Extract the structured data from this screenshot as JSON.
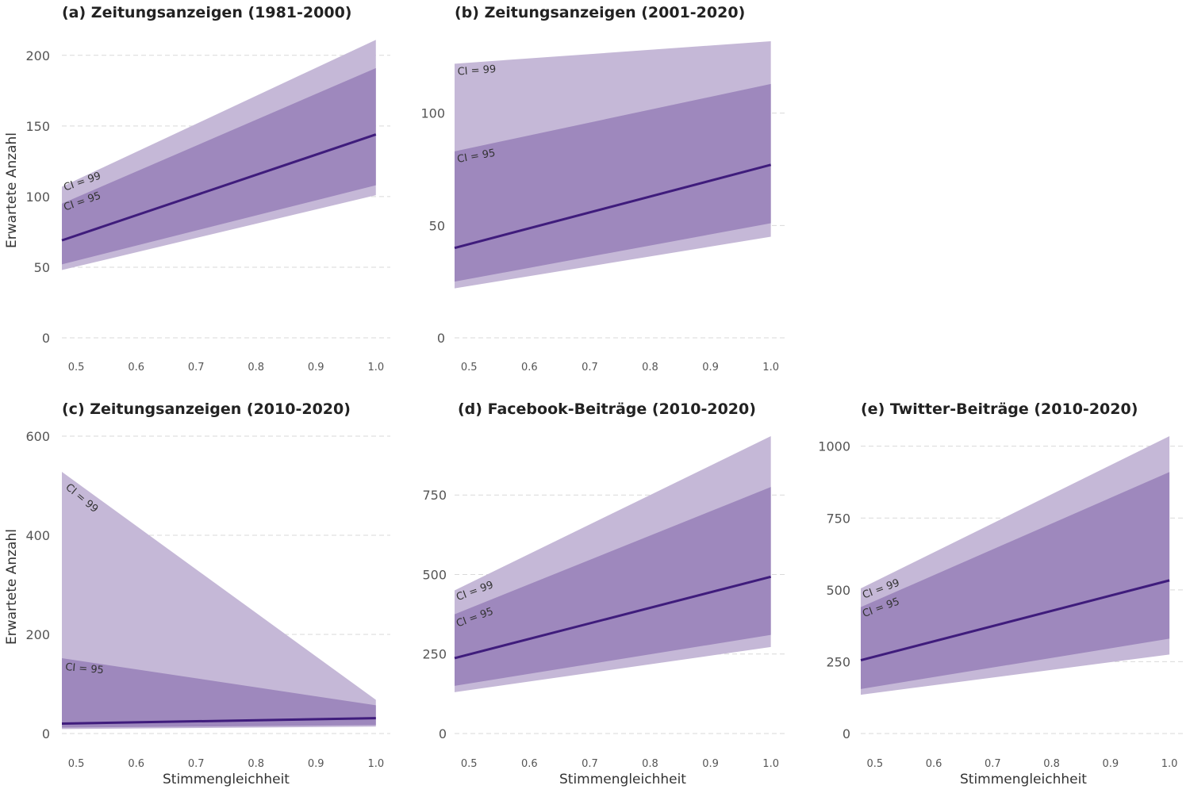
{
  "figure": {
    "y_axis_label": "Erwartete Anzahl",
    "x_axis_label": "Stimmengleichheit",
    "ci_labels": {
      "ci99": "CI = 99",
      "ci95": "CI = 95"
    },
    "colors": {
      "ci99": "#c5b8d7",
      "ci95": "#9e88bd",
      "line": "#3f1c7c"
    }
  },
  "chart_data": [
    {
      "id": "a",
      "type": "area",
      "title": "(a) Zeitungsanzeigen (1981-2000)",
      "x": [
        0.476,
        1.0
      ],
      "ylim": [
        0,
        210
      ],
      "yticks": [
        0,
        50,
        100,
        150,
        200
      ],
      "xticks": [
        0.5,
        0.6,
        0.7,
        0.8,
        0.9,
        1.0
      ],
      "series": [
        {
          "name": "CI = 99",
          "lower": [
            48,
            101
          ],
          "upper": [
            107,
            211
          ]
        },
        {
          "name": "CI = 95",
          "lower": [
            52,
            108
          ],
          "upper": [
            95,
            191
          ]
        },
        {
          "estimate": [
            69,
            144
          ]
        }
      ]
    },
    {
      "id": "b",
      "type": "area",
      "title": "(b) Zeitungsanzeigen (2001-2020)",
      "x": [
        0.476,
        1.0
      ],
      "ylim": [
        0,
        132
      ],
      "yticks": [
        0,
        50,
        100
      ],
      "xticks": [
        0.5,
        0.6,
        0.7,
        0.8,
        0.9,
        1.0
      ],
      "series": [
        {
          "name": "CI = 99",
          "lower": [
            22,
            45
          ],
          "upper": [
            122,
            132
          ]
        },
        {
          "name": "CI = 95",
          "lower": [
            25,
            51
          ],
          "upper": [
            83,
            113
          ]
        },
        {
          "estimate": [
            40,
            77
          ]
        }
      ]
    },
    {
      "id": "c",
      "type": "area",
      "title": "(c) Zeitungsanzeigen (2010-2020)",
      "x": [
        0.476,
        1.0
      ],
      "ylim": [
        0,
        600
      ],
      "yticks": [
        0,
        200,
        400,
        600
      ],
      "xticks": [
        0.5,
        0.6,
        0.7,
        0.8,
        0.9,
        1.0
      ],
      "series": [
        {
          "name": "CI = 99",
          "lower": [
            9,
            14
          ],
          "upper": [
            528,
            68
          ]
        },
        {
          "name": "CI = 95",
          "lower": [
            12,
            17
          ],
          "upper": [
            152,
            57
          ]
        },
        {
          "estimate": [
            20,
            31
          ]
        }
      ]
    },
    {
      "id": "d",
      "type": "area",
      "title": "(d) Facebook-Beiträge (2010-2020)",
      "x": [
        0.476,
        1.0
      ],
      "ylim": [
        0,
        935
      ],
      "yticks": [
        0,
        250,
        500,
        750
      ],
      "xticks": [
        0.5,
        0.6,
        0.7,
        0.8,
        0.9,
        1.0
      ],
      "series": [
        {
          "name": "CI = 99",
          "lower": [
            130,
            272
          ],
          "upper": [
            450,
            935
          ]
        },
        {
          "name": "CI = 95",
          "lower": [
            150,
            310
          ],
          "upper": [
            375,
            775
          ]
        },
        {
          "estimate": [
            237,
            493
          ]
        }
      ]
    },
    {
      "id": "e",
      "type": "area",
      "title": "(e) Twitter-Beiträge (2010-2020)",
      "x": [
        0.476,
        1.0
      ],
      "ylim": [
        0,
        1035
      ],
      "yticks": [
        0,
        250,
        500,
        750,
        1000
      ],
      "xticks": [
        0.5,
        0.6,
        0.7,
        0.8,
        0.9,
        1.0
      ],
      "series": [
        {
          "name": "CI = 99",
          "lower": [
            135,
            275
          ],
          "upper": [
            505,
            1035
          ]
        },
        {
          "name": "CI = 95",
          "lower": [
            155,
            330
          ],
          "upper": [
            440,
            910
          ]
        },
        {
          "estimate": [
            255,
            533
          ]
        }
      ]
    }
  ]
}
